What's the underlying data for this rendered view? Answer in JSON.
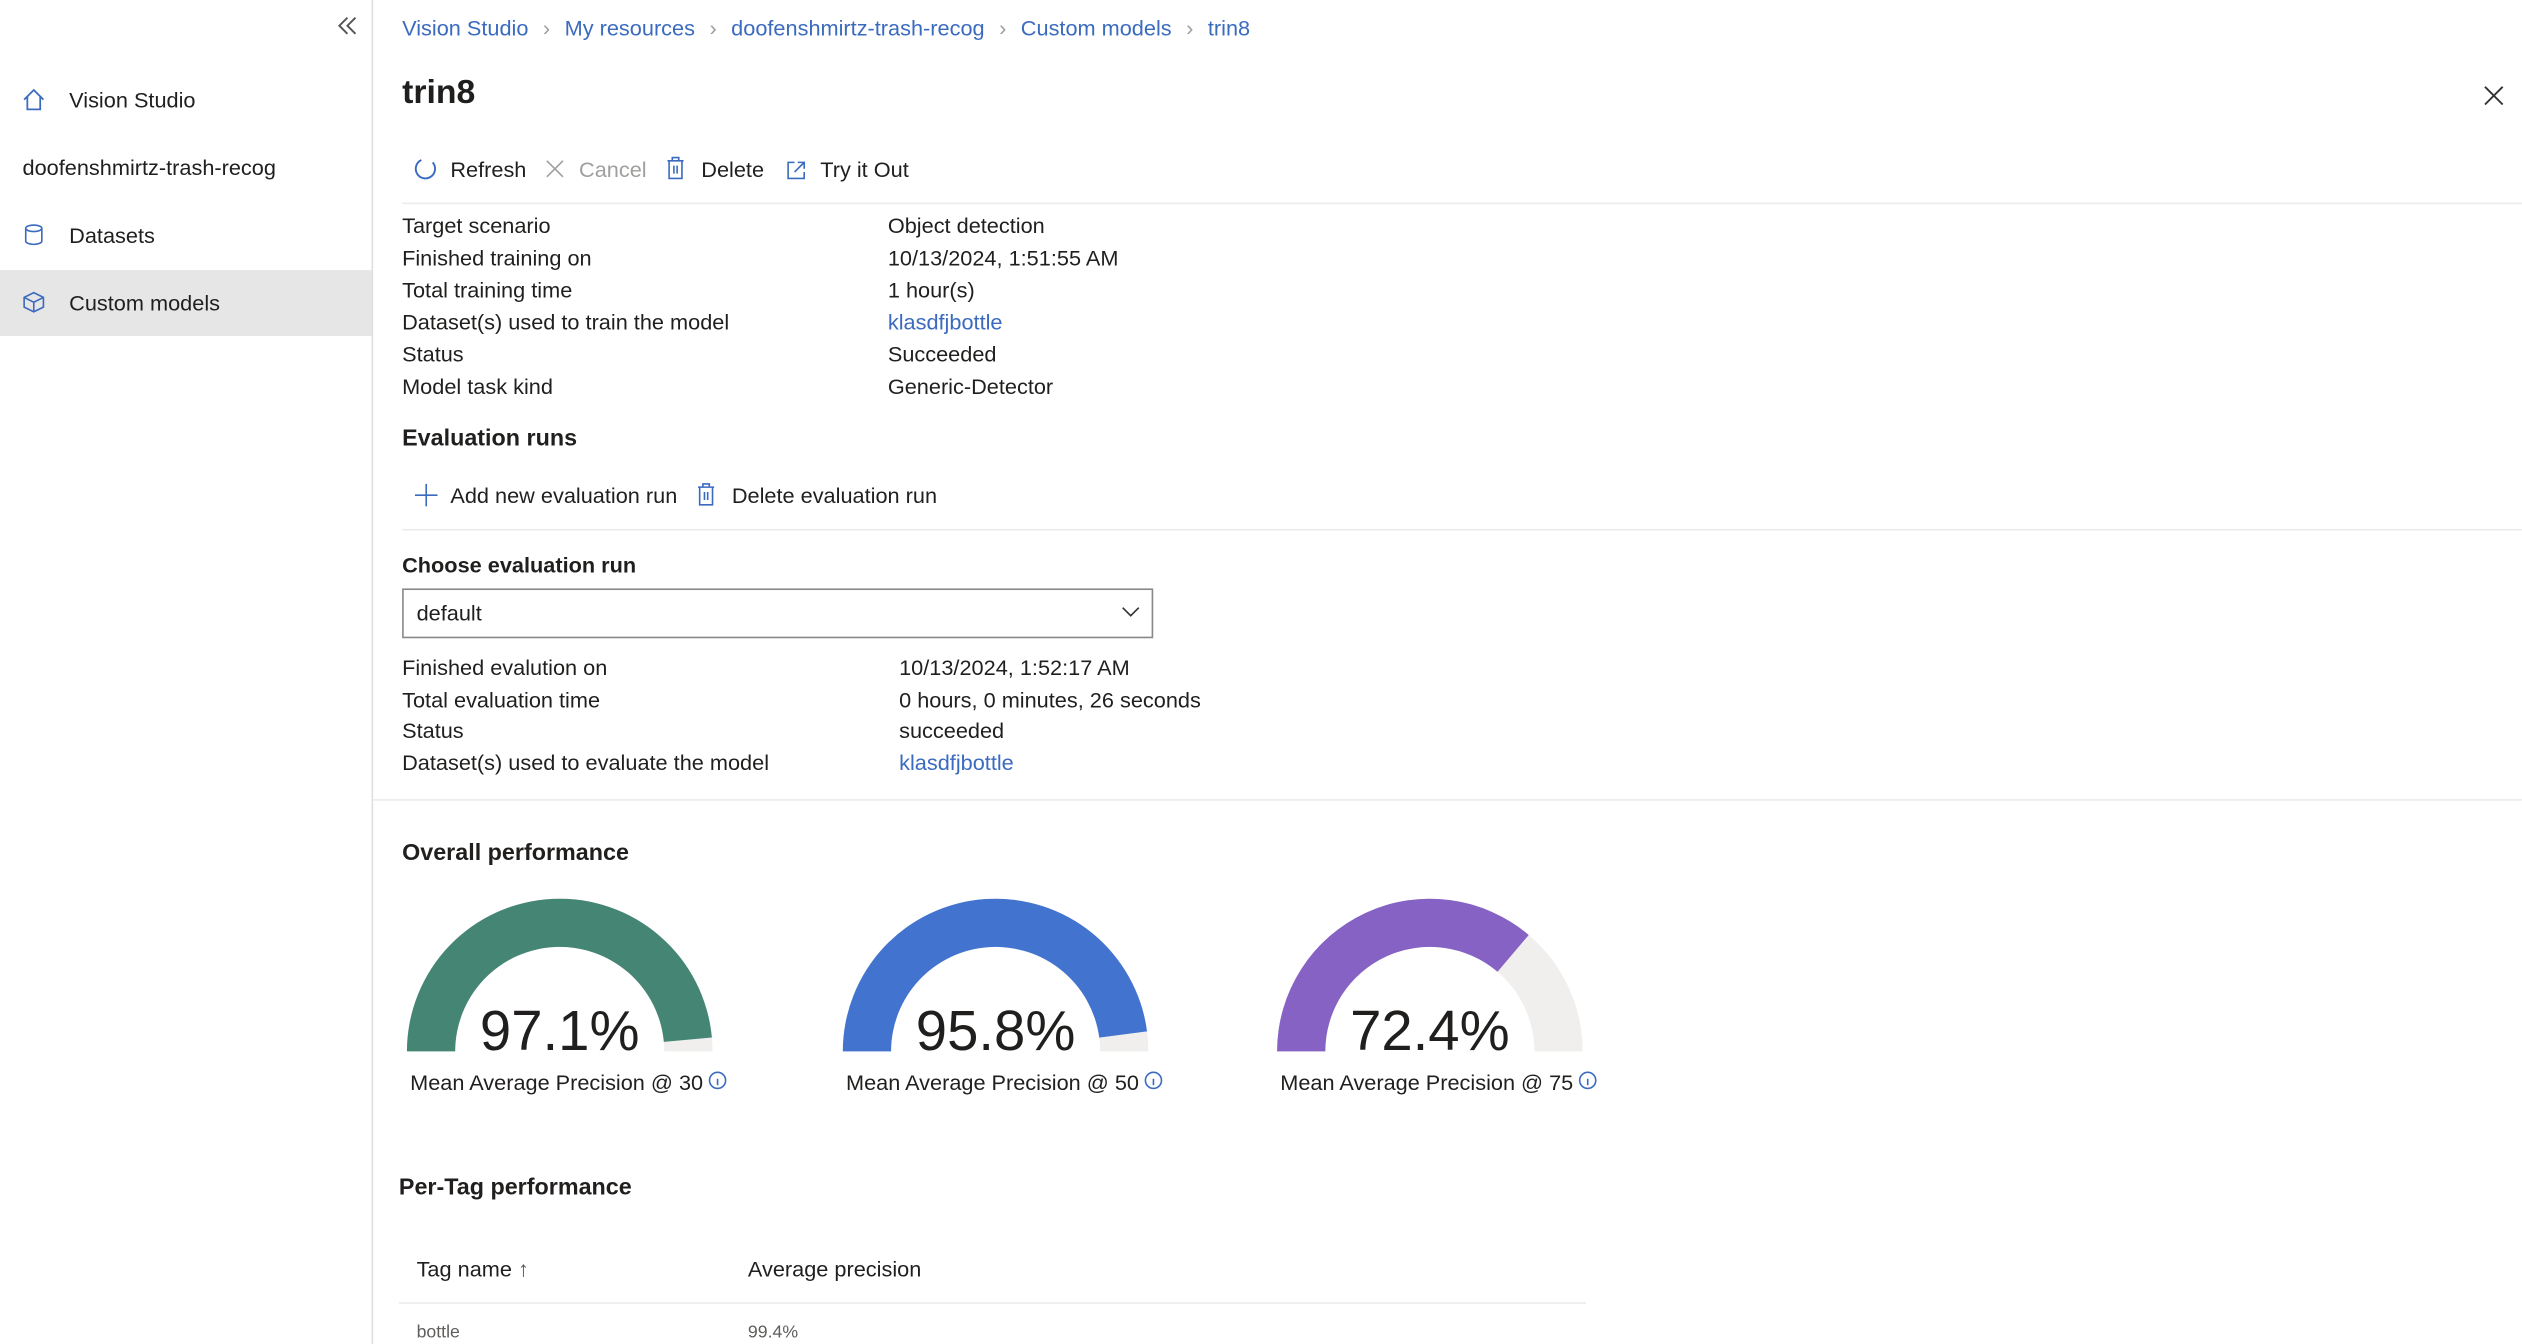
{
  "sidebar": {
    "items": [
      "Vision Studio",
      "Datasets",
      "Custom models"
    ],
    "resource": "doofenshmirtz-trash-recog"
  },
  "breadcrumb": [
    "Vision Studio",
    "My resources",
    "doofenshmirtz-trash-recog",
    "Custom models",
    "trin8"
  ],
  "header": {
    "title": "trin8"
  },
  "toolbar": [
    "Refresh",
    "Cancel",
    "Delete",
    "Try it Out"
  ],
  "model_details": [
    [
      "Target scenario",
      "Object detection"
    ],
    [
      "Finished training on",
      "10/13/2024, 1:51:55 AM"
    ],
    [
      "Total training time",
      "1 hour(s)"
    ],
    [
      "Dataset(s) used to train the model",
      "klasdfjbottle"
    ],
    [
      "Status",
      "Succeeded"
    ],
    [
      "Model task kind",
      "Generic-Detector"
    ]
  ],
  "evaluation": {
    "title": "Evaluation runs",
    "actions": [
      "Add new evaluation run",
      "Delete evaluation run"
    ],
    "choose_label": "Choose evaluation run",
    "selected": "default",
    "details": [
      [
        "Finished evalution on",
        "10/13/2024, 1:52:17 AM"
      ],
      [
        "Total evaluation time",
        "0 hours, 0 minutes, 26 seconds"
      ],
      [
        "Status",
        "succeeded"
      ],
      [
        "Dataset(s) used to evaluate the model",
        "klasdfjbottle"
      ]
    ]
  },
  "overall": {
    "title": "Overall performance",
    "gauges": [
      {
        "value": 97.1,
        "label": "97.1%",
        "caption": "Mean Average Precision @ 30",
        "color": "#448573"
      },
      {
        "value": 95.8,
        "label": "95.8%",
        "caption": "Mean Average Precision @ 50",
        "color": "#4274cf"
      },
      {
        "value": 72.4,
        "label": "72.4%",
        "caption": "Mean Average Precision @ 75",
        "color": "#8562c4"
      }
    ]
  },
  "per_tag": {
    "title": "Per-Tag performance",
    "headers": [
      "Tag name",
      "Average precision"
    ],
    "rows": [
      [
        "bottle",
        "99.4%"
      ]
    ]
  }
}
